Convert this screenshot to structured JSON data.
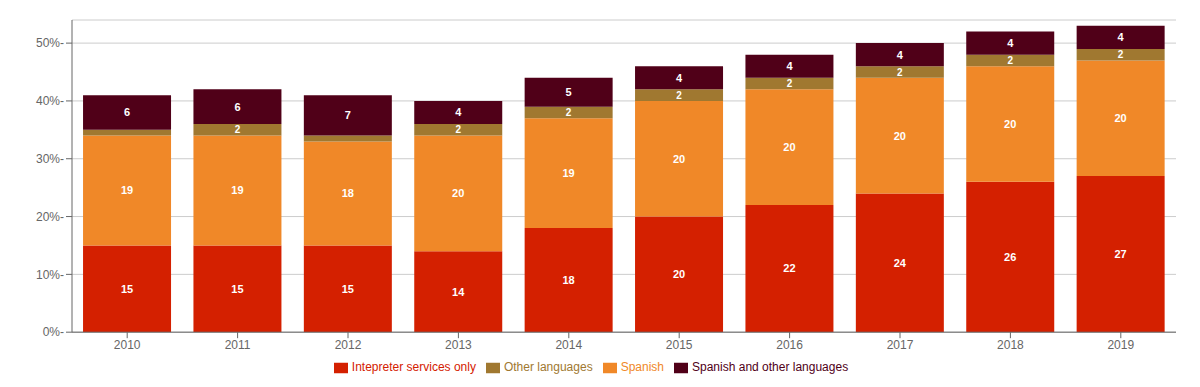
{
  "chart_data": {
    "type": "bar",
    "stacked": true,
    "categories": [
      "2010",
      "2011",
      "2012",
      "2013",
      "2014",
      "2015",
      "2016",
      "2017",
      "2018",
      "2019"
    ],
    "series": [
      {
        "name": "Intepreter services only",
        "color": "#d42000",
        "values": [
          15,
          15,
          15,
          14,
          18,
          20,
          22,
          24,
          26,
          27
        ]
      },
      {
        "name": "Spanish",
        "color": "#f08828",
        "values": [
          19,
          19,
          18,
          20,
          19,
          20,
          20,
          20,
          20,
          20
        ]
      },
      {
        "name": "Other languages",
        "color": "#a07830",
        "values": [
          1,
          2,
          1,
          2,
          2,
          2,
          2,
          2,
          2,
          2
        ],
        "value_labels": [
          null,
          "2",
          null,
          "2",
          "2",
          "2",
          "2",
          "2",
          "2",
          "2"
        ]
      },
      {
        "name": "Spanish and other languages",
        "color": "#500018",
        "values": [
          6,
          6,
          7,
          4,
          5,
          4,
          4,
          4,
          4,
          4
        ]
      }
    ],
    "ylim": [
      0,
      54
    ],
    "yticks": [
      {
        "value": 0,
        "label": "0%-"
      },
      {
        "value": 10,
        "label": "10%-"
      },
      {
        "value": 20,
        "label": "20%-"
      },
      {
        "value": 30,
        "label": "30%-"
      },
      {
        "value": 40,
        "label": "40%-"
      },
      {
        "value": 50,
        "label": "50%-"
      }
    ],
    "grid": true,
    "legend": "bottom",
    "data_labels": true
  }
}
